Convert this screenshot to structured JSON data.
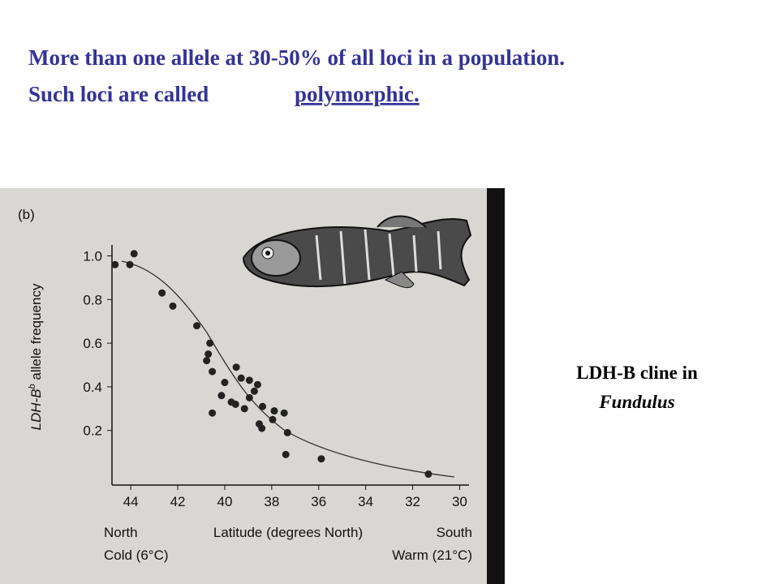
{
  "slide": {
    "heading_line1": "More than one allele at 30-50% of all loci in a population.",
    "heading_line2": "Such loci are called ",
    "heading_term": "polymorphic.",
    "caption_line1": "LDH-B cline in",
    "caption_line2": "Fundulus"
  },
  "chart_data": {
    "type": "scatter",
    "panel_label": "(b)",
    "ylabel": "LDH-B",
    "ylabel_sup": "b",
    "ylabel_rest": " allele frequency",
    "xlabel": "Latitude (degrees North)",
    "annotations": [
      "North",
      "Cold (6°C)",
      "South",
      "Warm (21°C)"
    ],
    "x": [
      44.67,
      44.04,
      43.86,
      42.67,
      42.21,
      41.19,
      40.63,
      40.7,
      40.77,
      40.53,
      39.51,
      39.3,
      38.95,
      38.6,
      40.0,
      40.14,
      39.72,
      39.54,
      38.95,
      38.74,
      38.39,
      37.89,
      37.47,
      37.96,
      38.53,
      38.42,
      39.16,
      40.53,
      37.33,
      37.4,
      35.89,
      31.33
    ],
    "values": [
      0.96,
      0.96,
      1.01,
      0.83,
      0.77,
      0.68,
      0.6,
      0.55,
      0.52,
      0.47,
      0.49,
      0.44,
      0.43,
      0.41,
      0.42,
      0.36,
      0.33,
      0.32,
      0.35,
      0.38,
      0.31,
      0.29,
      0.28,
      0.25,
      0.23,
      0.21,
      0.3,
      0.28,
      0.19,
      0.09,
      0.07,
      0.0
    ],
    "color": "#222222",
    "xlim": [
      44.8,
      29.6
    ],
    "xticks": [
      44,
      42,
      40,
      38,
      36,
      34,
      32,
      30
    ],
    "ylim": [
      -0.05,
      1.05
    ],
    "yticks": [
      0.2,
      0.4,
      0.6,
      0.8,
      {
        "value": 1,
        "label": "1.0"
      }
    ]
  }
}
